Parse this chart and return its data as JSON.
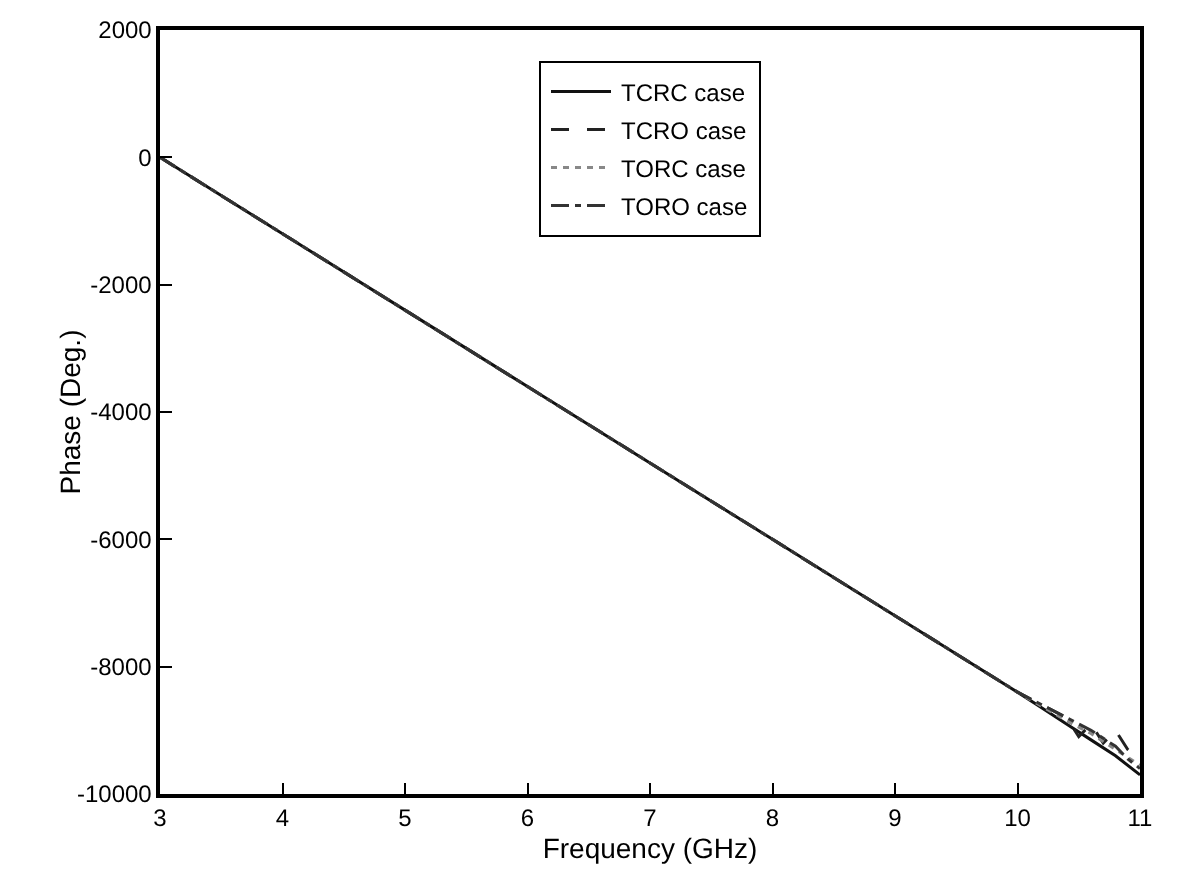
{
  "chart_data": {
    "type": "line",
    "xlabel": "Frequency (GHz)",
    "ylabel": "Phase (Deg.)",
    "xlim": [
      3,
      11
    ],
    "xticks": [
      3,
      4,
      5,
      6,
      7,
      8,
      9,
      10,
      11
    ],
    "ylim": [
      -10000,
      2000
    ],
    "yticks": [
      -10000,
      -8000,
      -6000,
      -4000,
      -2000,
      0,
      2000
    ],
    "grid": false,
    "legend": "top",
    "marker": "none",
    "series": [
      {
        "name": "TCRC case",
        "color": "#111111",
        "line_style": "solid",
        "x": [
          3,
          4,
          5,
          6,
          7,
          8,
          9,
          10,
          10.2,
          10.4,
          10.6,
          10.8,
          11
        ],
        "values": [
          0,
          -1200,
          -2400,
          -3600,
          -4800,
          -6000,
          -7200,
          -8400,
          -8650,
          -8900,
          -9150,
          -9400,
          -9700
        ]
      },
      {
        "name": "TCRO case",
        "color": "#222222",
        "line_style": "dashed",
        "x": [
          3,
          4,
          5,
          6,
          7,
          8,
          9,
          10,
          10.2,
          10.4,
          10.5,
          10.6,
          10.7,
          10.8,
          10.9,
          11
        ],
        "values": [
          0,
          -1200,
          -2400,
          -3600,
          -4800,
          -6000,
          -7200,
          -8400,
          -8600,
          -8800,
          -9100,
          -8900,
          -9200,
          -9000,
          -9300,
          -9450
        ]
      },
      {
        "name": "TORC case",
        "color": "#888888",
        "line_style": "dotted",
        "x": [
          3,
          4,
          5,
          6,
          7,
          8,
          9,
          10,
          10.4,
          10.6,
          10.8,
          11
        ],
        "values": [
          0,
          -1200,
          -2400,
          -3600,
          -4800,
          -6000,
          -7200,
          -8400,
          -8850,
          -9050,
          -9300,
          -9550
        ]
      },
      {
        "name": "TORO case",
        "color": "#333333",
        "line_style": "dashdot",
        "x": [
          3,
          4,
          5,
          6,
          7,
          8,
          9,
          10,
          10.4,
          10.6,
          10.8,
          10.9,
          11
        ],
        "values": [
          0,
          -1200,
          -2400,
          -3600,
          -4800,
          -6000,
          -7200,
          -8400,
          -8800,
          -9000,
          -9250,
          -9450,
          -9600
        ]
      }
    ]
  }
}
